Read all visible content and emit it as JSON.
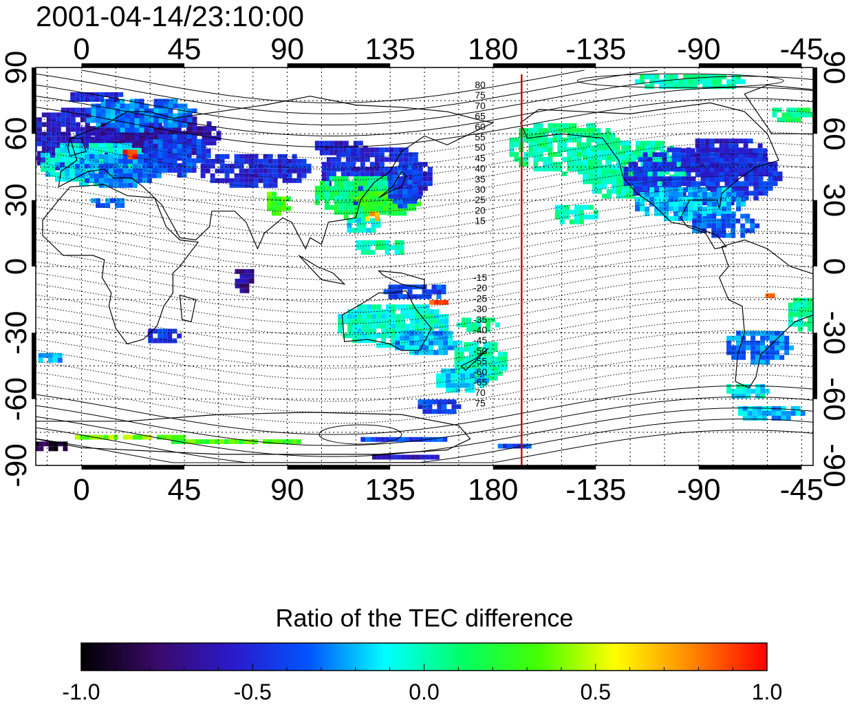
{
  "title": "2001-04-14/23:10:00",
  "map": {
    "lon_range": [
      -20,
      320
    ],
    "lat_range": [
      -90,
      90
    ],
    "top_lon_ticks": [
      {
        "lon": 0,
        "label": "0"
      },
      {
        "lon": 45,
        "label": "45"
      },
      {
        "lon": 90,
        "label": "90"
      },
      {
        "lon": 135,
        "label": "135"
      },
      {
        "lon": 180,
        "label": "180"
      },
      {
        "lon": 225,
        "label": "-135"
      },
      {
        "lon": 270,
        "label": "-90"
      },
      {
        "lon": 315,
        "label": "-45"
      }
    ],
    "bottom_lon_ticks": [
      {
        "lon": 0,
        "label": "0"
      },
      {
        "lon": 45,
        "label": "45"
      },
      {
        "lon": 90,
        "label": "90"
      },
      {
        "lon": 135,
        "label": "135"
      },
      {
        "lon": 180,
        "label": "180"
      },
      {
        "lon": 225,
        "label": "-135"
      },
      {
        "lon": 270,
        "label": "-90"
      },
      {
        "lon": 315,
        "label": "-45"
      }
    ],
    "left_lat_ticks": [
      {
        "lat": 90,
        "label": "90"
      },
      {
        "lat": 60,
        "label": "60"
      },
      {
        "lat": 30,
        "label": "30"
      },
      {
        "lat": 0,
        "label": "0"
      },
      {
        "lat": -30,
        "label": "-30"
      },
      {
        "lat": -60,
        "label": "-60"
      },
      {
        "lat": -90,
        "label": "-90"
      }
    ],
    "right_lat_ticks": [
      {
        "lat": 90,
        "label": "90"
      },
      {
        "lat": 60,
        "label": "60"
      },
      {
        "lat": 30,
        "label": "30"
      },
      {
        "lat": 0,
        "label": "0"
      },
      {
        "lat": -30,
        "label": "-30"
      },
      {
        "lat": -60,
        "label": "-60"
      },
      {
        "lat": -90,
        "label": "-90"
      }
    ],
    "grid": true,
    "grid_lon_step": 15,
    "grid_lat_step": 15,
    "terminator_lon": 192.5,
    "terminator_color": "#cc0000",
    "north_contour_labels": [
      "80",
      "75",
      "70",
      "65",
      "60",
      "55",
      "50",
      "45",
      "40",
      "35",
      "30",
      "25",
      "20",
      "15"
    ],
    "south_contour_labels": [
      "-15",
      "-20",
      "-25",
      "-30",
      "-35",
      "-40",
      "-45",
      "-50",
      "-55",
      "-60",
      "-65",
      "70",
      "75"
    ],
    "data_patches": [
      {
        "lon": 10,
        "lat": 58,
        "w": 40,
        "h": 16,
        "value": -0.55
      },
      {
        "lon": 30,
        "lat": 60,
        "w": 30,
        "h": 10,
        "value": -0.65
      },
      {
        "lon": 5,
        "lat": 48,
        "w": 25,
        "h": 10,
        "value": -0.1
      },
      {
        "lon": 15,
        "lat": 45,
        "w": 20,
        "h": 8,
        "value": -0.3
      },
      {
        "lon": 40,
        "lat": 52,
        "w": 15,
        "h": 10,
        "value": -0.4
      },
      {
        "lon": 25,
        "lat": 70,
        "w": 25,
        "h": 8,
        "value": -0.3
      },
      {
        "lon": 5,
        "lat": 78,
        "w": 12,
        "h": 3,
        "value": -0.5
      },
      {
        "lon": 75,
        "lat": 45,
        "w": 25,
        "h": 8,
        "value": -0.5
      },
      {
        "lon": 112,
        "lat": 55,
        "w": 12,
        "h": 4,
        "value": -0.55
      },
      {
        "lon": 128,
        "lat": 42,
        "w": 25,
        "h": 14,
        "value": -0.5
      },
      {
        "lon": 120,
        "lat": 33,
        "w": 20,
        "h": 10,
        "value": 0.1
      },
      {
        "lon": 132,
        "lat": 30,
        "w": 15,
        "h": 6,
        "value": 0.25
      },
      {
        "lon": 140,
        "lat": 38,
        "w": 8,
        "h": 10,
        "value": -0.4
      },
      {
        "lon": 122,
        "lat": 20,
        "w": 8,
        "h": 4,
        "value": -0.1
      },
      {
        "lon": 130,
        "lat": 10,
        "w": 12,
        "h": 4,
        "value": 0.0
      },
      {
        "lon": 145,
        "lat": -10,
        "w": 15,
        "h": 4,
        "value": -0.4
      },
      {
        "lon": 135,
        "lat": -25,
        "w": 25,
        "h": 10,
        "value": -0.05
      },
      {
        "lon": 150,
        "lat": -33,
        "w": 15,
        "h": 6,
        "value": -0.2
      },
      {
        "lon": 173,
        "lat": -42,
        "w": 12,
        "h": 10,
        "value": 0.0
      },
      {
        "lon": 165,
        "lat": -50,
        "w": 12,
        "h": 6,
        "value": -0.15
      },
      {
        "lon": 172,
        "lat": -25,
        "w": 10,
        "h": 4,
        "value": 0.05
      },
      {
        "lon": 155,
        "lat": -62,
        "w": 10,
        "h": 4,
        "value": -0.4
      },
      {
        "lon": 10,
        "lat": 30,
        "w": 8,
        "h": 3,
        "value": -0.3
      },
      {
        "lon": 35,
        "lat": -30,
        "w": 8,
        "h": 4,
        "value": -0.45
      },
      {
        "lon": -15,
        "lat": -40,
        "w": 6,
        "h": 3,
        "value": -0.2
      },
      {
        "lon": 70,
        "lat": -5,
        "w": 5,
        "h": 6,
        "value": -0.7
      },
      {
        "lon": 85,
        "lat": 30,
        "w": 6,
        "h": 6,
        "value": 0.3
      },
      {
        "lon": 210,
        "lat": 55,
        "w": 25,
        "h": 12,
        "value": 0.05
      },
      {
        "lon": 240,
        "lat": 45,
        "w": 25,
        "h": 14,
        "value": 0.0
      },
      {
        "lon": 270,
        "lat": 42,
        "w": 35,
        "h": 14,
        "value": -0.45
      },
      {
        "lon": 265,
        "lat": 30,
        "w": 25,
        "h": 8,
        "value": -0.2
      },
      {
        "lon": 280,
        "lat": 50,
        "w": 20,
        "h": 10,
        "value": -0.5
      },
      {
        "lon": 280,
        "lat": 20,
        "w": 15,
        "h": 6,
        "value": -0.35
      },
      {
        "lon": 265,
        "lat": 85,
        "w": 25,
        "h": 4,
        "value": 0.0
      },
      {
        "lon": 310,
        "lat": 70,
        "w": 10,
        "h": 4,
        "value": 0.1
      },
      {
        "lon": 215,
        "lat": 25,
        "w": 10,
        "h": 5,
        "value": 0.0
      },
      {
        "lon": 315,
        "lat": -20,
        "w": 8,
        "h": 8,
        "value": 0.0
      },
      {
        "lon": 295,
        "lat": -35,
        "w": 15,
        "h": 8,
        "value": -0.3
      },
      {
        "lon": 290,
        "lat": -55,
        "w": 10,
        "h": 4,
        "value": -0.1
      },
      {
        "lon": 300,
        "lat": -65,
        "w": 15,
        "h": 4,
        "value": -0.2
      },
      {
        "lon": 65,
        "lat": -78,
        "w": 30,
        "h": 2,
        "value": 0.3
      },
      {
        "lon": 20,
        "lat": -76,
        "w": 25,
        "h": 2,
        "value": 0.4
      },
      {
        "lon": 140,
        "lat": -77,
        "w": 20,
        "h": 2,
        "value": -0.4
      },
      {
        "lon": -15,
        "lat": -80,
        "w": 10,
        "h": 3,
        "value": -0.9
      },
      {
        "lon": 140,
        "lat": -85,
        "w": 15,
        "h": 2,
        "value": -0.55
      },
      {
        "lon": 188,
        "lat": -80,
        "w": 8,
        "h": 2,
        "value": -0.4
      },
      {
        "lon": 20,
        "lat": 52,
        "w": 4,
        "h": 3,
        "value": 0.95
      },
      {
        "lon": 155,
        "lat": -15,
        "w": 5,
        "h": 2,
        "value": 0.9
      },
      {
        "lon": 126,
        "lat": 24,
        "w": 4,
        "h": 3,
        "value": 0.7
      },
      {
        "lon": 300,
        "lat": -12,
        "w": 3,
        "h": 2,
        "value": 0.85
      }
    ]
  },
  "colorbar": {
    "title": "Ratio of the TEC difference",
    "min": -1.0,
    "max": 1.0,
    "stops": [
      "#000000",
      "#3a0a6a",
      "#2a1acc",
      "#0055ff",
      "#00ffff",
      "#00ff66",
      "#44ff00",
      "#ffff00",
      "#ff8800",
      "#ff0000"
    ],
    "tick_labels": [
      "-1.0",
      "-0.5",
      "0.0",
      "0.5",
      "1.0"
    ],
    "tick_values": [
      -1.0,
      -0.5,
      0.0,
      0.5,
      1.0
    ]
  }
}
